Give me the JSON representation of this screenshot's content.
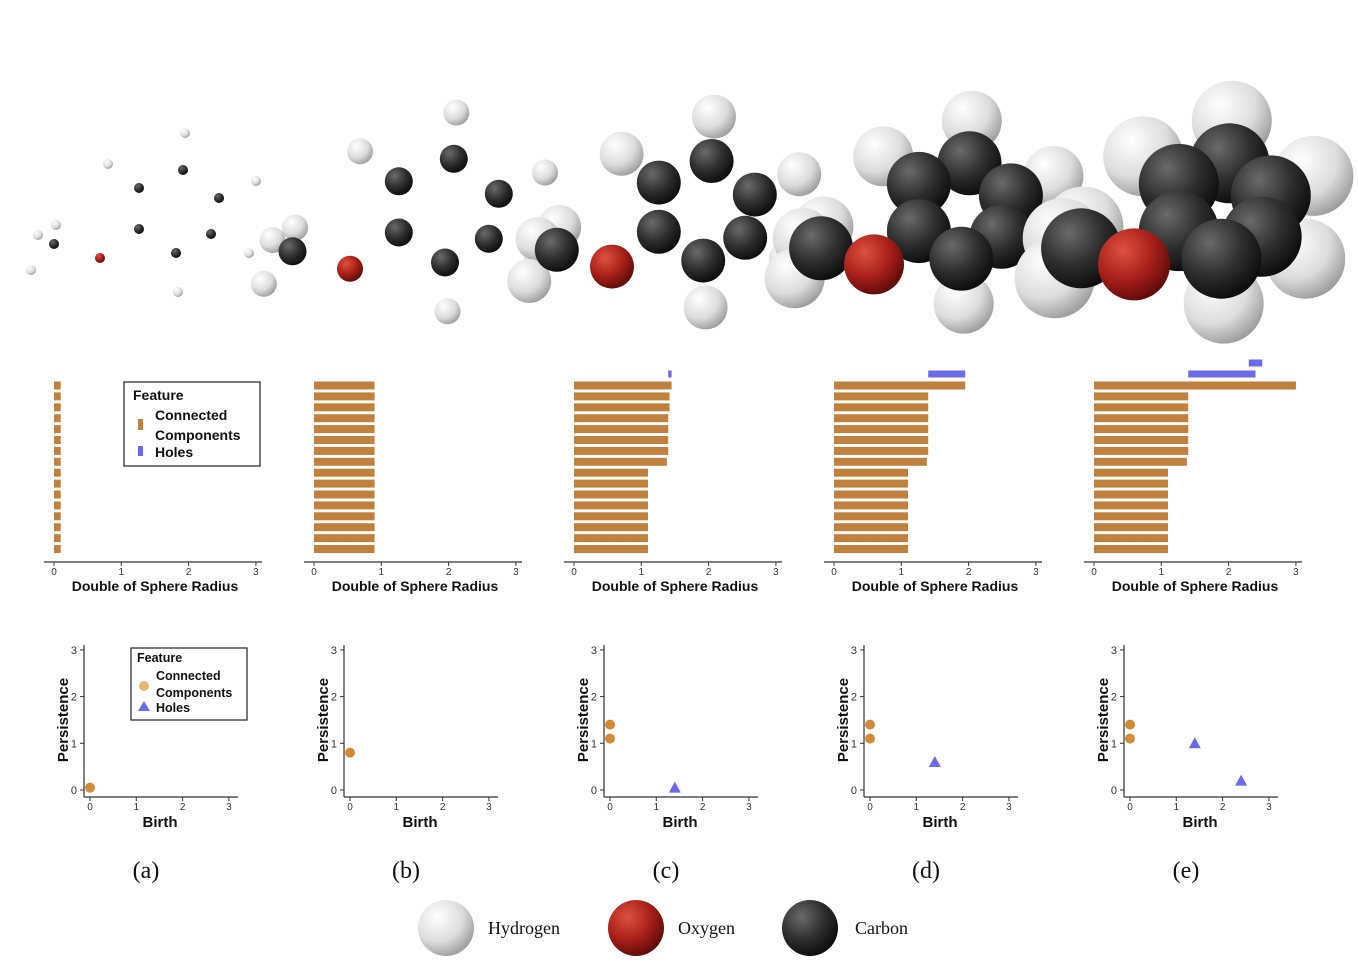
{
  "colors": {
    "cc": "#c0813f",
    "cc_point": "#d08a38",
    "holes": "#6b6bea",
    "hydrogen": "#e6e6e6",
    "oxygen": "#a8201a",
    "carbon": "#303030",
    "axis": "#333333"
  },
  "panels": [
    {
      "caption": "(a)",
      "cc_count": 16,
      "molecule": "ball-and-stick-small"
    },
    {
      "caption": "(b)",
      "cc_count": 16,
      "molecule": "ball-and-stick-medium"
    },
    {
      "caption": "(c)",
      "cc_count": 16,
      "molecule": "spheres-overlapping"
    },
    {
      "caption": "(d)",
      "cc_count": 16,
      "molecule": "spheres-fused"
    },
    {
      "caption": "(e)",
      "cc_count": 16,
      "molecule": "spheres-fully-fused"
    }
  ],
  "legend": {
    "title": "Feature",
    "cc_label_line1": "Connected",
    "cc_label_line2": "Components",
    "holes_label": "Holes"
  },
  "atom_legend": [
    {
      "label": "Hydrogen",
      "icon": "hydrogen-sphere"
    },
    {
      "label": "Oxygen",
      "icon": "oxygen-sphere"
    },
    {
      "label": "Carbon",
      "icon": "carbon-sphere"
    }
  ],
  "chart_data": [
    {
      "type": "bar",
      "panel": "(a)",
      "title": "",
      "xlabel": "Double of Sphere Radius",
      "ylabel": "",
      "xlim": [
        0,
        3
      ],
      "xticks": [
        "0",
        "1",
        "2",
        "3"
      ],
      "series": [
        {
          "name": "Connected Components",
          "intervals": [
            [
              0,
              0.1
            ],
            [
              0,
              0.1
            ],
            [
              0,
              0.1
            ],
            [
              0,
              0.1
            ],
            [
              0,
              0.1
            ],
            [
              0,
              0.1
            ],
            [
              0,
              0.1
            ],
            [
              0,
              0.1
            ],
            [
              0,
              0.1
            ],
            [
              0,
              0.1
            ],
            [
              0,
              0.1
            ],
            [
              0,
              0.1
            ],
            [
              0,
              0.1
            ],
            [
              0,
              0.1
            ],
            [
              0,
              0.1
            ],
            [
              0,
              0.1
            ]
          ]
        },
        {
          "name": "Holes",
          "intervals": []
        }
      ],
      "legend": "top-right"
    },
    {
      "type": "bar",
      "panel": "(b)",
      "title": "",
      "xlabel": "Double of Sphere Radius",
      "ylabel": "",
      "xlim": [
        0,
        3
      ],
      "xticks": [
        "0",
        "1",
        "2",
        "3"
      ],
      "series": [
        {
          "name": "Connected Components",
          "intervals": [
            [
              0,
              0.9
            ],
            [
              0,
              0.9
            ],
            [
              0,
              0.9
            ],
            [
              0,
              0.9
            ],
            [
              0,
              0.9
            ],
            [
              0,
              0.9
            ],
            [
              0,
              0.9
            ],
            [
              0,
              0.9
            ],
            [
              0,
              0.9
            ],
            [
              0,
              0.9
            ],
            [
              0,
              0.9
            ],
            [
              0,
              0.9
            ],
            [
              0,
              0.9
            ],
            [
              0,
              0.9
            ],
            [
              0,
              0.9
            ],
            [
              0,
              0.9
            ]
          ]
        },
        {
          "name": "Holes",
          "intervals": []
        }
      ]
    },
    {
      "type": "bar",
      "panel": "(c)",
      "title": "",
      "xlabel": "Double of Sphere Radius",
      "ylabel": "",
      "xlim": [
        0,
        3
      ],
      "xticks": [
        "0",
        "1",
        "2",
        "3"
      ],
      "series": [
        {
          "name": "Connected Components",
          "intervals": [
            [
              0,
              1.1
            ],
            [
              0,
              1.1
            ],
            [
              0,
              1.1
            ],
            [
              0,
              1.1
            ],
            [
              0,
              1.1
            ],
            [
              0,
              1.1
            ],
            [
              0,
              1.1
            ],
            [
              0,
              1.1
            ],
            [
              0,
              1.38
            ],
            [
              0,
              1.4
            ],
            [
              0,
              1.4
            ],
            [
              0,
              1.4
            ],
            [
              0,
              1.4
            ],
            [
              0,
              1.42
            ],
            [
              0,
              1.42
            ],
            [
              0,
              1.45
            ]
          ]
        },
        {
          "name": "Holes",
          "intervals": [
            [
              1.4,
              1.45
            ]
          ]
        }
      ]
    },
    {
      "type": "bar",
      "panel": "(d)",
      "title": "",
      "xlabel": "Double of Sphere Radius",
      "ylabel": "",
      "xlim": [
        0,
        3
      ],
      "xticks": [
        "0",
        "1",
        "2",
        "3"
      ],
      "series": [
        {
          "name": "Connected Components",
          "intervals": [
            [
              0,
              1.1
            ],
            [
              0,
              1.1
            ],
            [
              0,
              1.1
            ],
            [
              0,
              1.1
            ],
            [
              0,
              1.1
            ],
            [
              0,
              1.1
            ],
            [
              0,
              1.1
            ],
            [
              0,
              1.1
            ],
            [
              0,
              1.38
            ],
            [
              0,
              1.4
            ],
            [
              0,
              1.4
            ],
            [
              0,
              1.4
            ],
            [
              0,
              1.4
            ],
            [
              0,
              1.4
            ],
            [
              0,
              1.4
            ],
            [
              0,
              1.95
            ]
          ]
        },
        {
          "name": "Holes",
          "intervals": [
            [
              1.4,
              1.95
            ]
          ]
        }
      ]
    },
    {
      "type": "bar",
      "panel": "(e)",
      "title": "",
      "xlabel": "Double of Sphere Radius",
      "ylabel": "",
      "xlim": [
        0,
        3
      ],
      "xticks": [
        "0",
        "1",
        "2",
        "3"
      ],
      "series": [
        {
          "name": "Connected Components",
          "intervals": [
            [
              0,
              1.1
            ],
            [
              0,
              1.1
            ],
            [
              0,
              1.1
            ],
            [
              0,
              1.1
            ],
            [
              0,
              1.1
            ],
            [
              0,
              1.1
            ],
            [
              0,
              1.1
            ],
            [
              0,
              1.1
            ],
            [
              0,
              1.38
            ],
            [
              0,
              1.4
            ],
            [
              0,
              1.4
            ],
            [
              0,
              1.4
            ],
            [
              0,
              1.4
            ],
            [
              0,
              1.4
            ],
            [
              0,
              1.4
            ],
            [
              0,
              3.0
            ]
          ]
        },
        {
          "name": "Holes",
          "intervals": [
            [
              1.4,
              2.4
            ],
            [
              2.3,
              2.5
            ]
          ]
        }
      ]
    },
    {
      "type": "scatter",
      "panel": "(a)",
      "title": "",
      "xlabel": "Birth",
      "ylabel": "Persistence",
      "xlim": [
        0,
        3
      ],
      "ylim": [
        0,
        3
      ],
      "xticks": [
        "0",
        "1",
        "2",
        "3"
      ],
      "yticks": [
        "0",
        "1",
        "2",
        "3"
      ],
      "series": [
        {
          "name": "Connected Components",
          "points": [
            [
              0,
              0.05
            ]
          ]
        },
        {
          "name": "Holes",
          "points": []
        }
      ],
      "legend": "top-right"
    },
    {
      "type": "scatter",
      "panel": "(b)",
      "title": "",
      "xlabel": "Birth",
      "ylabel": "Persistence",
      "xlim": [
        0,
        3
      ],
      "ylim": [
        0,
        3
      ],
      "xticks": [
        "0",
        "1",
        "2",
        "3"
      ],
      "yticks": [
        "0",
        "1",
        "2",
        "3"
      ],
      "series": [
        {
          "name": "Connected Components",
          "points": [
            [
              0,
              0.8
            ]
          ]
        },
        {
          "name": "Holes",
          "points": []
        }
      ]
    },
    {
      "type": "scatter",
      "panel": "(c)",
      "title": "",
      "xlabel": "Birth",
      "ylabel": "Persistence",
      "xlim": [
        0,
        3
      ],
      "ylim": [
        0,
        3
      ],
      "xticks": [
        "0",
        "1",
        "2",
        "3"
      ],
      "yticks": [
        "0",
        "1",
        "2",
        "3"
      ],
      "series": [
        {
          "name": "Connected Components",
          "points": [
            [
              0,
              1.4
            ],
            [
              0,
              1.1
            ]
          ]
        },
        {
          "name": "Holes",
          "points": [
            [
              1.4,
              0.05
            ]
          ]
        }
      ]
    },
    {
      "type": "scatter",
      "panel": "(d)",
      "title": "",
      "xlabel": "Birth",
      "ylabel": "Persistence",
      "xlim": [
        0,
        3
      ],
      "ylim": [
        0,
        3
      ],
      "xticks": [
        "0",
        "1",
        "2",
        "3"
      ],
      "yticks": [
        "0",
        "1",
        "2",
        "3"
      ],
      "series": [
        {
          "name": "Connected Components",
          "points": [
            [
              0,
              1.4
            ],
            [
              0,
              1.1
            ]
          ]
        },
        {
          "name": "Holes",
          "points": [
            [
              1.4,
              0.6
            ]
          ]
        }
      ]
    },
    {
      "type": "scatter",
      "panel": "(e)",
      "title": "",
      "xlabel": "Birth",
      "ylabel": "Persistence",
      "xlim": [
        0,
        3
      ],
      "ylim": [
        0,
        3
      ],
      "xticks": [
        "0",
        "1",
        "2",
        "3"
      ],
      "yticks": [
        "0",
        "1",
        "2",
        "3"
      ],
      "series": [
        {
          "name": "Connected Components",
          "points": [
            [
              0,
              1.4
            ],
            [
              0,
              1.1
            ]
          ]
        },
        {
          "name": "Holes",
          "points": [
            [
              1.4,
              1.0
            ],
            [
              2.4,
              0.2
            ]
          ]
        }
      ]
    }
  ]
}
